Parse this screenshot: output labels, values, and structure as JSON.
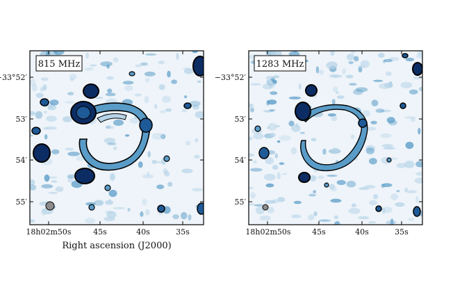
{
  "figure": {
    "xlabel": "Right ascension (J2000)",
    "panels": [
      {
        "frequency": "815 MHz",
        "dec_ticks": [
          "−33°52′",
          "53′",
          "54′",
          "55′"
        ],
        "ra_ticks": [
          "18h02m50s",
          "45s",
          "40s",
          "35s"
        ]
      },
      {
        "frequency": "1283 MHz",
        "dec_ticks": [
          "−33°52′",
          "53′",
          "54′",
          "55′"
        ],
        "ra_ticks": [
          "18h02m50s",
          "45s",
          "40s",
          "35s"
        ]
      }
    ]
  },
  "colors": {
    "background": "#eef4f9",
    "light": "#b7d4e8",
    "mid": "#5a9cc8",
    "deep": "#1f5a98",
    "darkest": "#0c2d64",
    "contour": "#000000",
    "beam": "#8c8c8c"
  }
}
